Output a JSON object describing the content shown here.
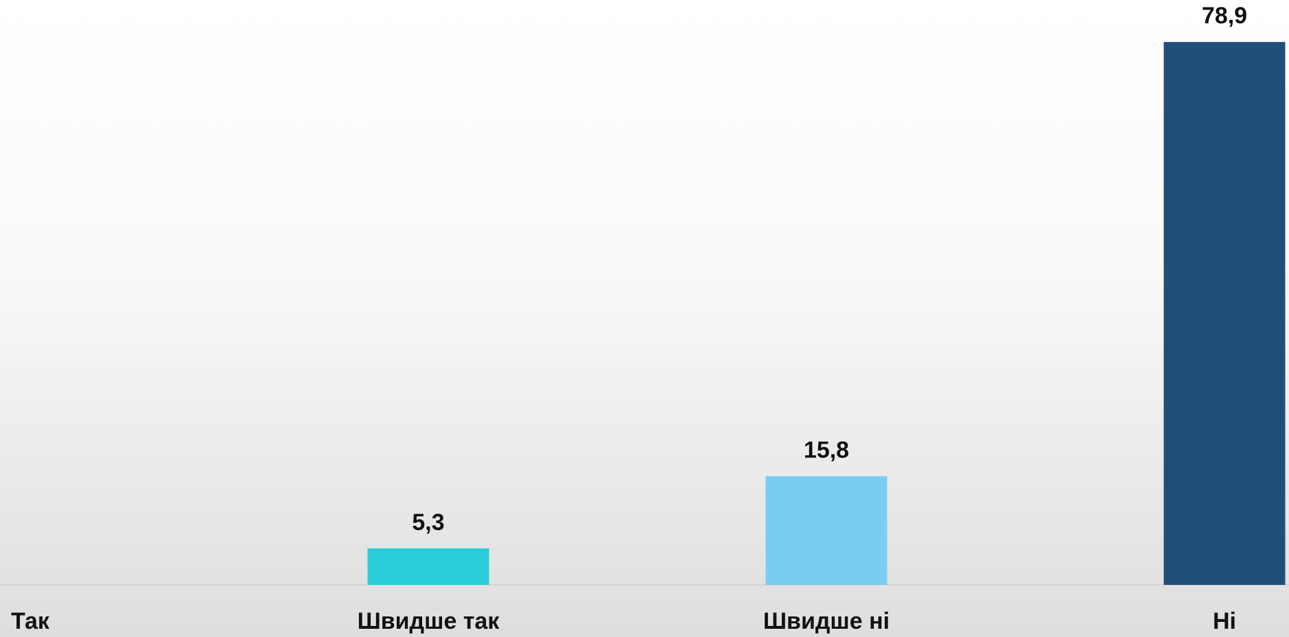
{
  "chart_data": {
    "type": "bar",
    "categories": [
      "Так",
      "Швидше так",
      "Швидше ні",
      "Ні"
    ],
    "values": [
      null,
      5.3,
      15.8,
      78.9
    ],
    "value_labels": [
      null,
      "5,3",
      "15,8",
      "78,9"
    ],
    "colors": [
      "#29cdd7",
      "#29cdd7",
      "#7acdf0",
      "#1f4e79"
    ],
    "ylim": [
      0,
      85
    ]
  }
}
